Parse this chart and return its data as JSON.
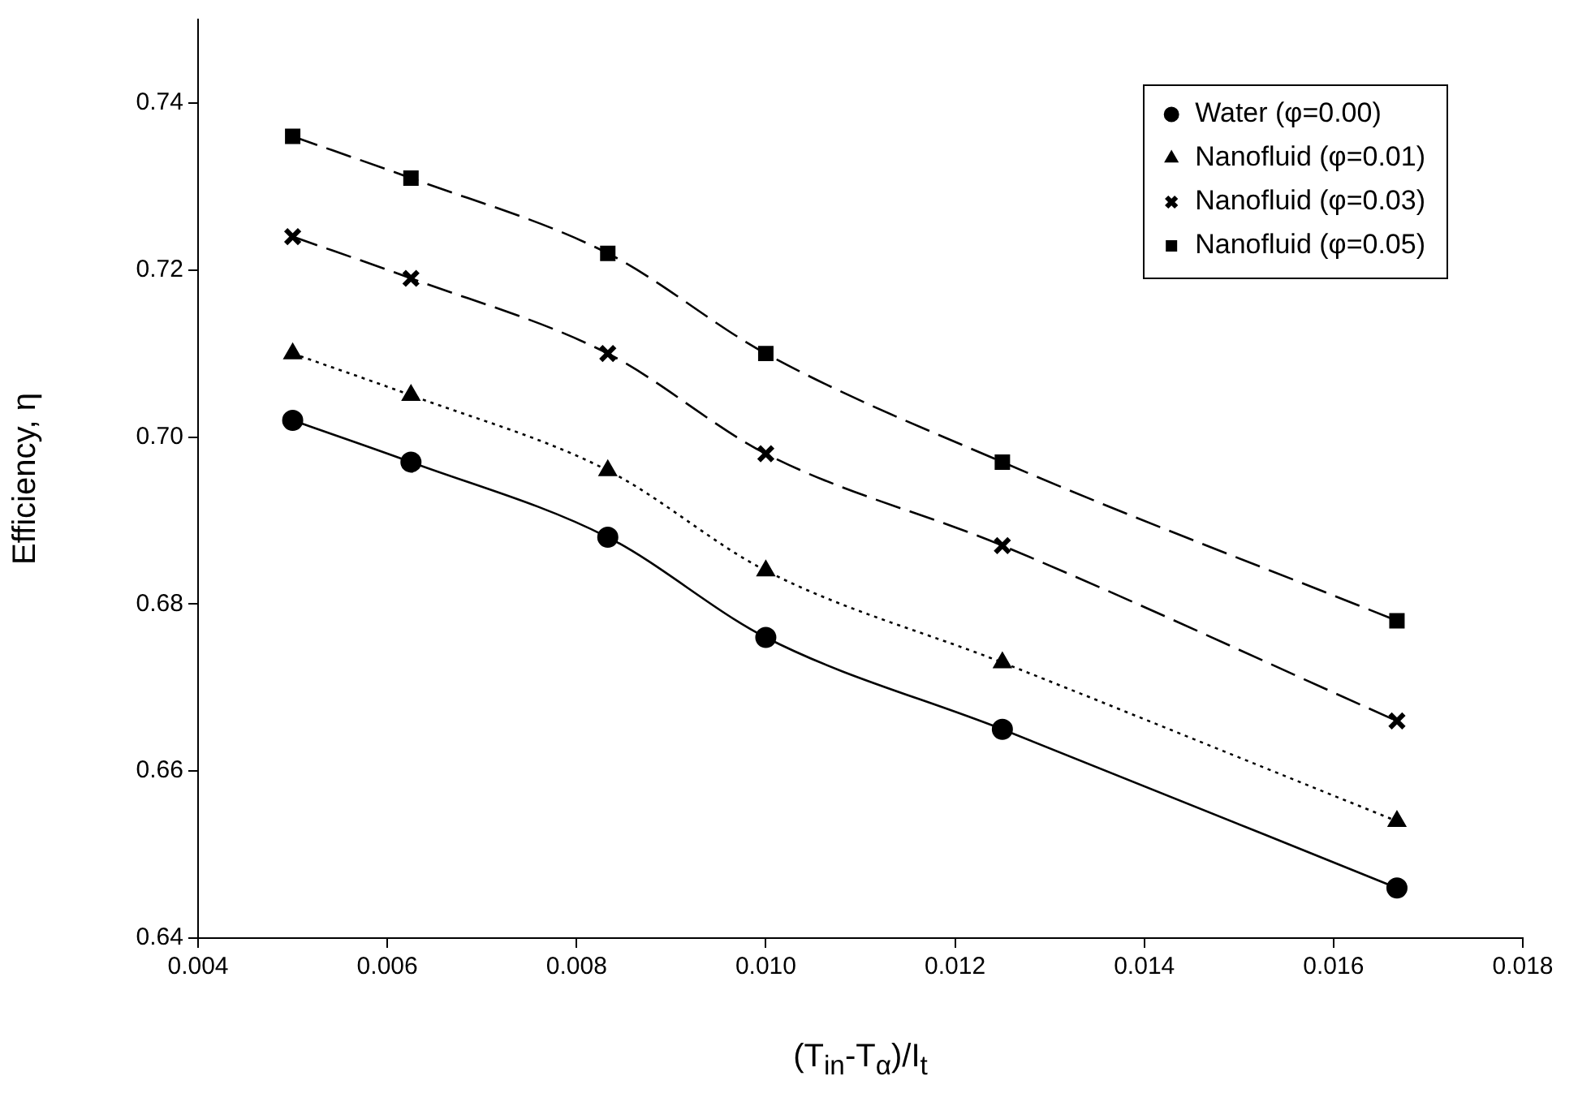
{
  "chart_data": {
    "type": "line",
    "xlabel": "(T$_{in}$-T$_{α}$)/I$_{t}$",
    "ylabel": "Efficiency, η",
    "x": [
      0.005,
      0.00625,
      0.00833,
      0.01,
      0.0125,
      0.01667
    ],
    "series": [
      {
        "name": "Water (φ=0.00)",
        "color": "#000000",
        "marker": "circle",
        "line_style": "solid",
        "values": [
          0.702,
          0.697,
          0.688,
          0.676,
          0.665,
          0.646
        ]
      },
      {
        "name": "Nanofluid (φ=0.01)",
        "color": "#000000",
        "marker": "triangle",
        "line_style": "dotted",
        "values": [
          0.71,
          0.705,
          0.696,
          0.684,
          0.673,
          0.654
        ]
      },
      {
        "name": "Nanofluid (φ=0.03)",
        "color": "#000000",
        "marker": "cross",
        "line_style": "dashed",
        "values": [
          0.724,
          0.719,
          0.71,
          0.698,
          0.687,
          0.666
        ]
      },
      {
        "name": "Nanofluid (φ=0.05)",
        "color": "#000000",
        "marker": "square",
        "line_style": "dashed",
        "values": [
          0.736,
          0.731,
          0.722,
          0.71,
          0.697,
          0.678
        ]
      }
    ],
    "xlim": [
      0.004,
      0.018
    ],
    "xticks": [
      {
        "value": 0.004,
        "label": "0.004"
      },
      {
        "value": 0.006,
        "label": "0.006"
      },
      {
        "value": 0.008,
        "label": "0.008"
      },
      {
        "value": 0.01,
        "label": "0.010"
      },
      {
        "value": 0.012,
        "label": "0.012"
      },
      {
        "value": 0.014,
        "label": "0.014"
      },
      {
        "value": 0.016,
        "label": "0.016"
      },
      {
        "value": 0.018,
        "label": "0.018"
      }
    ],
    "ylim": [
      0.64,
      0.75
    ],
    "yticks": [
      {
        "value": 0.64,
        "label": "0.64"
      },
      {
        "value": 0.66,
        "label": "0.66"
      },
      {
        "value": 0.68,
        "label": "0.68"
      },
      {
        "value": 0.7,
        "label": "0.70"
      },
      {
        "value": 0.72,
        "label": "0.72"
      },
      {
        "value": 0.74,
        "label": "0.74"
      }
    ],
    "grid": false,
    "legend": "top right"
  }
}
